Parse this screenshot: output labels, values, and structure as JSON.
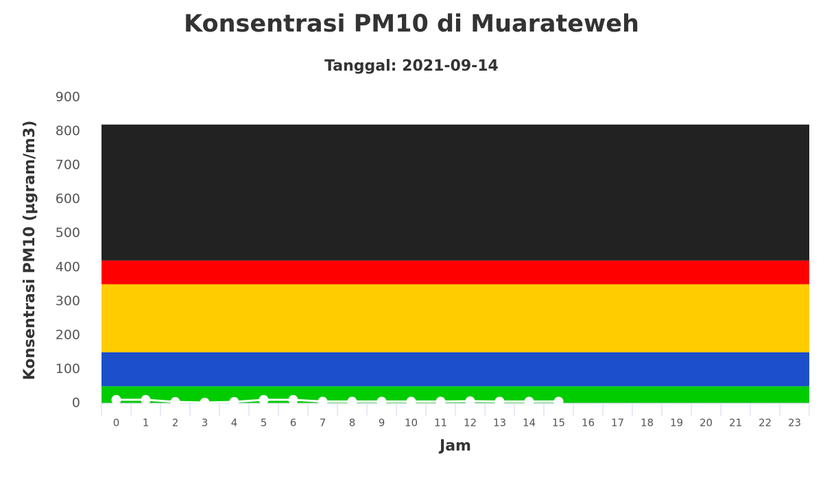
{
  "chart_data": {
    "type": "line",
    "title": "Konsentrasi PM10 di Muarateweh",
    "subtitle": "Tanggal: 2021-09-14",
    "y_label": "Konsentrasi PM10 (µgram/m3)",
    "x_label": "Jam",
    "categories": [
      "0",
      "1",
      "2",
      "3",
      "4",
      "5",
      "6",
      "7",
      "8",
      "9",
      "10",
      "11",
      "12",
      "13",
      "14",
      "15",
      "16",
      "17",
      "18",
      "19",
      "20",
      "21",
      "22",
      "23"
    ],
    "series": [
      {
        "name": "PM10",
        "color": "#ffffff",
        "values": [
          10,
          10,
          4,
          2,
          4,
          10,
          10,
          5,
          5,
          5,
          5,
          5,
          6,
          5,
          5,
          5,
          null,
          null,
          null,
          null,
          null,
          null,
          null,
          null
        ]
      }
    ],
    "bands": [
      {
        "from": 0,
        "to": 50,
        "color": "#00cc00"
      },
      {
        "from": 50,
        "to": 150,
        "color": "#1c4fcc"
      },
      {
        "from": 150,
        "to": 350,
        "color": "#ffcc00"
      },
      {
        "from": 350,
        "to": 420,
        "color": "#ff0000"
      },
      {
        "from": 420,
        "to": 820,
        "color": "#222222"
      }
    ],
    "ylim": [
      0,
      900
    ],
    "yticks": [
      0,
      100,
      200,
      300,
      400,
      500,
      600,
      700,
      800,
      900
    ],
    "grid": false
  }
}
